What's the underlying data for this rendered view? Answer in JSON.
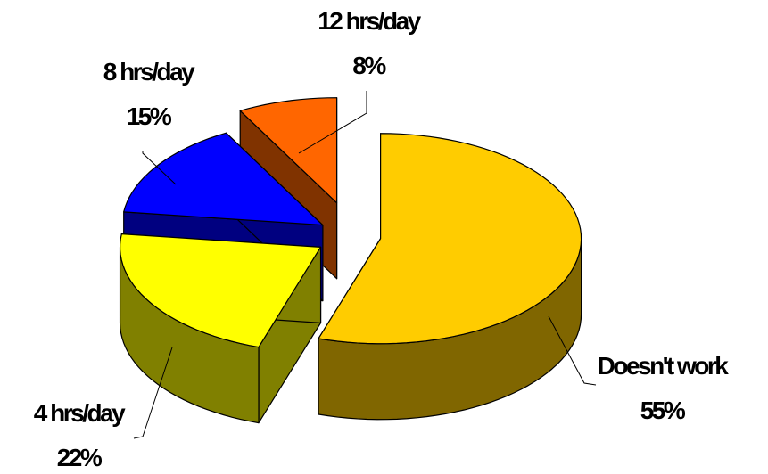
{
  "chart_data": {
    "type": "pie",
    "style": "3d-exploded",
    "title": "",
    "slices": [
      {
        "label": "Doesn't work",
        "value": 55,
        "percent_label": "55%",
        "color": "#FFCC00",
        "side_color": "#806600"
      },
      {
        "label": "4 hrs/day",
        "value": 22,
        "percent_label": "22%",
        "color": "#FFFF00",
        "side_color": "#808000"
      },
      {
        "label": "8 hrs/day",
        "value": 15,
        "percent_label": "15%",
        "color": "#0000FF",
        "side_color": "#000080"
      },
      {
        "label": "12 hrs/day",
        "value": 8,
        "percent_label": "8%",
        "color": "#FF6600",
        "side_color": "#803300"
      }
    ],
    "legend": "none"
  }
}
